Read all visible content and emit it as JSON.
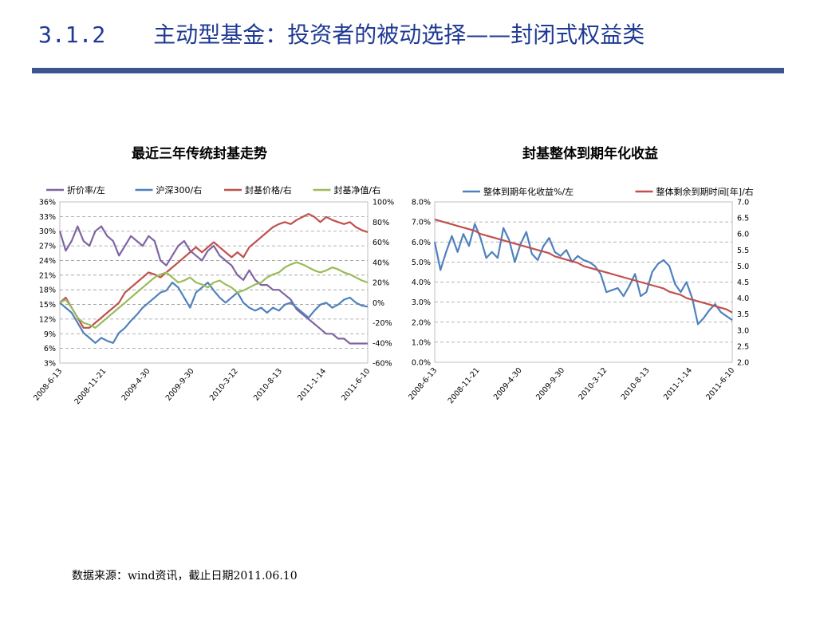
{
  "header": {
    "section": "3.1.2",
    "title": "主动型基金：投资者的被动选择——封闭式权益类"
  },
  "footer": {
    "source": "数据来源：wind资讯，截止日期2011.06.10"
  },
  "colors": {
    "accent": "#3b5590",
    "title": "#1f3a93",
    "purple": "#8064a2",
    "blue": "#4f81bd",
    "red": "#c0504d",
    "green": "#9bbb59"
  },
  "chart_data": [
    {
      "type": "line",
      "title": "最近三年传统封基走势",
      "x_tick_labels": [
        "2008-6-13",
        "2008-11-21",
        "2009-4-30",
        "2009-9-30",
        "2010-3-12",
        "2010-8-13",
        "2011-1-14",
        "2011-6-10"
      ],
      "left_axis": {
        "ticks": [
          "3%",
          "6%",
          "9%",
          "12%",
          "15%",
          "18%",
          "21%",
          "24%",
          "27%",
          "30%",
          "33%",
          "36%"
        ],
        "ylim": [
          3,
          36
        ]
      },
      "right_axis": {
        "ticks": [
          "-60%",
          "-40%",
          "-20%",
          "0%",
          "20%",
          "40%",
          "60%",
          "80%",
          "100%"
        ],
        "ylim": [
          -60,
          100
        ]
      },
      "grid": true,
      "legend_position": "top",
      "series": [
        {
          "name": "折价率/左",
          "axis": "left",
          "color": "#8064a2",
          "values": [
            30,
            26,
            28,
            31,
            28,
            27,
            30,
            31,
            29,
            28,
            25,
            27,
            29,
            28,
            27,
            29,
            28,
            24,
            23,
            25,
            27,
            28,
            26,
            25,
            24,
            26,
            27,
            25,
            24,
            23,
            21,
            20,
            22,
            20,
            19,
            19,
            18,
            18,
            17,
            16,
            14,
            13,
            12,
            11,
            10,
            9,
            9,
            8,
            8,
            7,
            7,
            7,
            7
          ]
        },
        {
          "name": "沪深300/右",
          "axis": "right",
          "color": "#4f81bd",
          "values": [
            0,
            -5,
            -10,
            -20,
            -30,
            -35,
            -40,
            -35,
            -38,
            -40,
            -30,
            -25,
            -18,
            -12,
            -5,
            0,
            5,
            10,
            12,
            20,
            15,
            5,
            -5,
            10,
            15,
            20,
            12,
            5,
            0,
            5,
            10,
            0,
            -5,
            -8,
            -5,
            -10,
            -5,
            -8,
            -2,
            0,
            -5,
            -10,
            -15,
            -8,
            -2,
            0,
            -5,
            -2,
            3,
            5,
            0,
            -3,
            -4
          ]
        },
        {
          "name": "封基价格/右",
          "axis": "right",
          "color": "#c0504d",
          "values": [
            0,
            5,
            -5,
            -15,
            -25,
            -25,
            -20,
            -15,
            -10,
            -5,
            0,
            10,
            15,
            20,
            25,
            30,
            28,
            25,
            30,
            35,
            40,
            45,
            50,
            55,
            50,
            55,
            60,
            55,
            50,
            45,
            50,
            45,
            55,
            60,
            65,
            70,
            75,
            78,
            80,
            78,
            82,
            85,
            88,
            85,
            80,
            85,
            82,
            80,
            78,
            80,
            75,
            72,
            70
          ]
        },
        {
          "name": "封基净值/右",
          "axis": "right",
          "color": "#9bbb59",
          "values": [
            0,
            3,
            -5,
            -15,
            -20,
            -22,
            -25,
            -20,
            -15,
            -10,
            -5,
            0,
            5,
            10,
            15,
            20,
            25,
            28,
            30,
            25,
            20,
            22,
            25,
            20,
            18,
            15,
            20,
            22,
            18,
            15,
            10,
            12,
            15,
            18,
            20,
            25,
            28,
            30,
            35,
            38,
            40,
            38,
            35,
            32,
            30,
            32,
            35,
            33,
            30,
            28,
            25,
            22,
            20
          ]
        }
      ]
    },
    {
      "type": "line",
      "title": "封基整体到期年化收益",
      "x_tick_labels": [
        "2008-6-13",
        "2008-11-21",
        "2009-4-30",
        "2009-9-30",
        "2010-3-12",
        "2010-8-13",
        "2011-1-14",
        "2011-6-10"
      ],
      "left_axis": {
        "ticks": [
          "0.0%",
          "1.0%",
          "2.0%",
          "3.0%",
          "4.0%",
          "5.0%",
          "6.0%",
          "7.0%",
          "8.0%"
        ],
        "ylim": [
          0,
          8
        ]
      },
      "right_axis": {
        "ticks": [
          "2.0",
          "2.5",
          "3.0",
          "3.5",
          "4.0",
          "4.5",
          "5.0",
          "5.5",
          "6.0",
          "6.5",
          "7.0"
        ],
        "ylim": [
          2,
          7
        ]
      },
      "grid": true,
      "legend_position": "top",
      "series": [
        {
          "name": "整体到期年化收益%/左",
          "axis": "left",
          "color": "#4f81bd",
          "values": [
            6.0,
            4.6,
            5.5,
            6.3,
            5.5,
            6.4,
            5.8,
            6.9,
            6.2,
            5.2,
            5.5,
            5.2,
            6.7,
            6.1,
            5.0,
            5.9,
            6.5,
            5.4,
            5.1,
            5.8,
            6.2,
            5.5,
            5.3,
            5.6,
            5.0,
            5.3,
            5.1,
            5.0,
            4.8,
            4.4,
            3.5,
            3.6,
            3.7,
            3.3,
            3.8,
            4.4,
            3.3,
            3.5,
            4.5,
            4.9,
            5.1,
            4.8,
            3.9,
            3.5,
            4.0,
            3.2,
            1.9,
            2.2,
            2.6,
            2.9,
            2.5,
            2.3,
            2.1
          ]
        },
        {
          "name": "整体剩余到期时间[年]/右",
          "axis": "right",
          "color": "#c0504d",
          "values": [
            6.45,
            6.4,
            6.35,
            6.3,
            6.25,
            6.2,
            6.15,
            6.1,
            6.0,
            5.95,
            5.9,
            5.85,
            5.8,
            5.75,
            5.7,
            5.65,
            5.6,
            5.55,
            5.5,
            5.45,
            5.4,
            5.3,
            5.25,
            5.2,
            5.15,
            5.1,
            5.0,
            4.95,
            4.9,
            4.85,
            4.8,
            4.75,
            4.7,
            4.65,
            4.6,
            4.55,
            4.5,
            4.45,
            4.4,
            4.35,
            4.3,
            4.2,
            4.15,
            4.1,
            4.0,
            3.95,
            3.9,
            3.85,
            3.8,
            3.75,
            3.7,
            3.65,
            3.55
          ]
        }
      ]
    }
  ]
}
